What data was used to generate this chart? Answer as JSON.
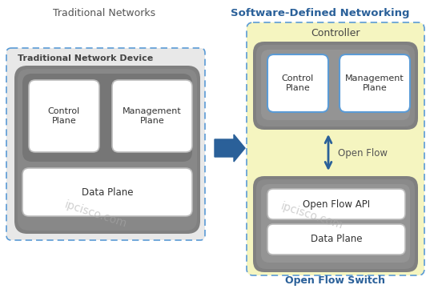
{
  "title_left": "Traditional Networks",
  "title_right": "Software-Defined Networking",
  "watermark": "ipcisco.com",
  "bg_color": "#ffffff",
  "arrow_color": "#2a6099",
  "controller_label": "Controller",
  "control_plane_label": "Control\nPlane",
  "management_plane_label": "Management\nPlane",
  "data_plane_label": "Data Plane",
  "open_flow_label": "Open Flow",
  "open_flow_api_label": "Open Flow API",
  "open_flow_switch_label": "Open Flow Switch",
  "trad_device_label": "Traditional Network Device",
  "left_outer_fill": "#e0e0e0",
  "left_outer_border": "#5b9bd5",
  "dark_gray": "#7a7a7a",
  "med_gray": "#9a9a9a",
  "light_gray_inner": "#b8b8b8",
  "white_box": "#ffffff",
  "white_box_border": "#cccccc",
  "yellow_fill": "#f5f5c0",
  "yellow_border": "#5b9bd5",
  "right_dark_gray": "#7a7a7a",
  "right_med_gray": "#9a9a9a",
  "blue_box_border": "#5b9bd5"
}
